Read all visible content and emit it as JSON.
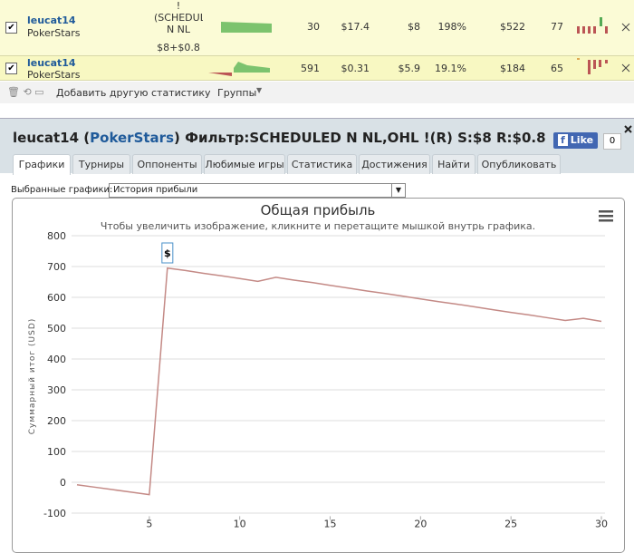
{
  "table": {
    "rows": [
      {
        "player": "leucat14",
        "site": "PokerStars",
        "filter": "!(SCHEDULED N NL Omaha H/L",
        "buyin": "$8+$0.8",
        "cells": [
          "30",
          "$17.4",
          "$8",
          "198%",
          "$522",
          "77"
        ]
      },
      {
        "player": "leucat14",
        "site": "PokerStars",
        "cells": [
          "591",
          "$0.31",
          "$5.9",
          "19.1%",
          "$184",
          "65"
        ]
      }
    ]
  },
  "toolbar": {
    "add_stats": "Добавить другую статистику",
    "groups": "Группы"
  },
  "header": {
    "title_parts": [
      "leucat14 (",
      "PokerStars",
      ") Фильтр:SCHEDULED N NL,OHL !(R) S:$8 R:$0.8"
    ],
    "like": "Like",
    "like_count": "0"
  },
  "tabs": [
    "Графики",
    "Турниры",
    "Оппоненты",
    "Любимые игры",
    "Статистика",
    "Достижения",
    "Найти",
    "Опубликовать"
  ],
  "selector": {
    "label": "Выбранные графики:",
    "value": "История прибыли"
  },
  "chart_data": {
    "type": "line",
    "title": "Общая прибыль",
    "subtitle": "Чтобы увеличить изображение, кликните и перетащите мышкой внутрь графика.",
    "y_label": "Суммарный итог (USD)",
    "x": [
      1,
      2,
      3,
      4,
      5,
      6,
      7,
      8,
      9,
      10,
      11,
      12,
      13,
      14,
      15,
      16,
      17,
      18,
      19,
      20,
      21,
      22,
      23,
      24,
      25,
      26,
      27,
      28,
      29,
      30
    ],
    "values": [
      -8,
      -16,
      -24,
      -32,
      -40,
      695,
      687,
      678,
      670,
      661,
      652,
      665,
      656,
      648,
      639,
      630,
      621,
      613,
      604,
      595,
      586,
      578,
      569,
      560,
      551,
      543,
      534,
      525,
      532,
      522
    ],
    "color": "#c48a86",
    "xlim": [
      0.7,
      30.2
    ],
    "xticks": [
      5,
      10,
      15,
      20,
      25,
      30
    ],
    "ylim": [
      -110,
      800
    ],
    "yticks": [
      -100,
      0,
      100,
      200,
      300,
      400,
      500,
      600,
      700,
      800
    ],
    "grid": true,
    "annotations": [
      {
        "x": 6,
        "label": "$"
      }
    ]
  }
}
